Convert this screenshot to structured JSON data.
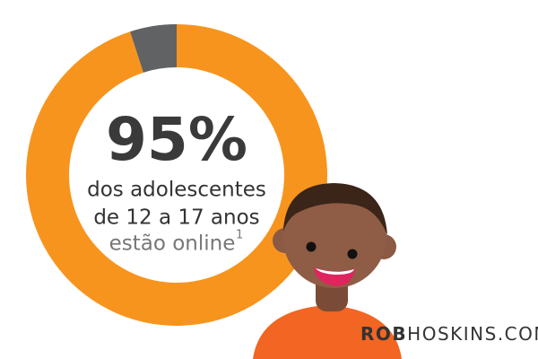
{
  "chart_data": {
    "type": "donut",
    "values": [
      95,
      5
    ],
    "value_labels": [
      "95%",
      null
    ],
    "colors": [
      "#f7941d",
      "#606263"
    ],
    "caption_lines": [
      "dos adolescentes",
      "de 12 a 17 anos",
      "estão online"
    ],
    "footnote_mark": "1"
  },
  "brand": {
    "parts": [
      "ROB",
      "HOSKINS",
      ".COM"
    ]
  }
}
